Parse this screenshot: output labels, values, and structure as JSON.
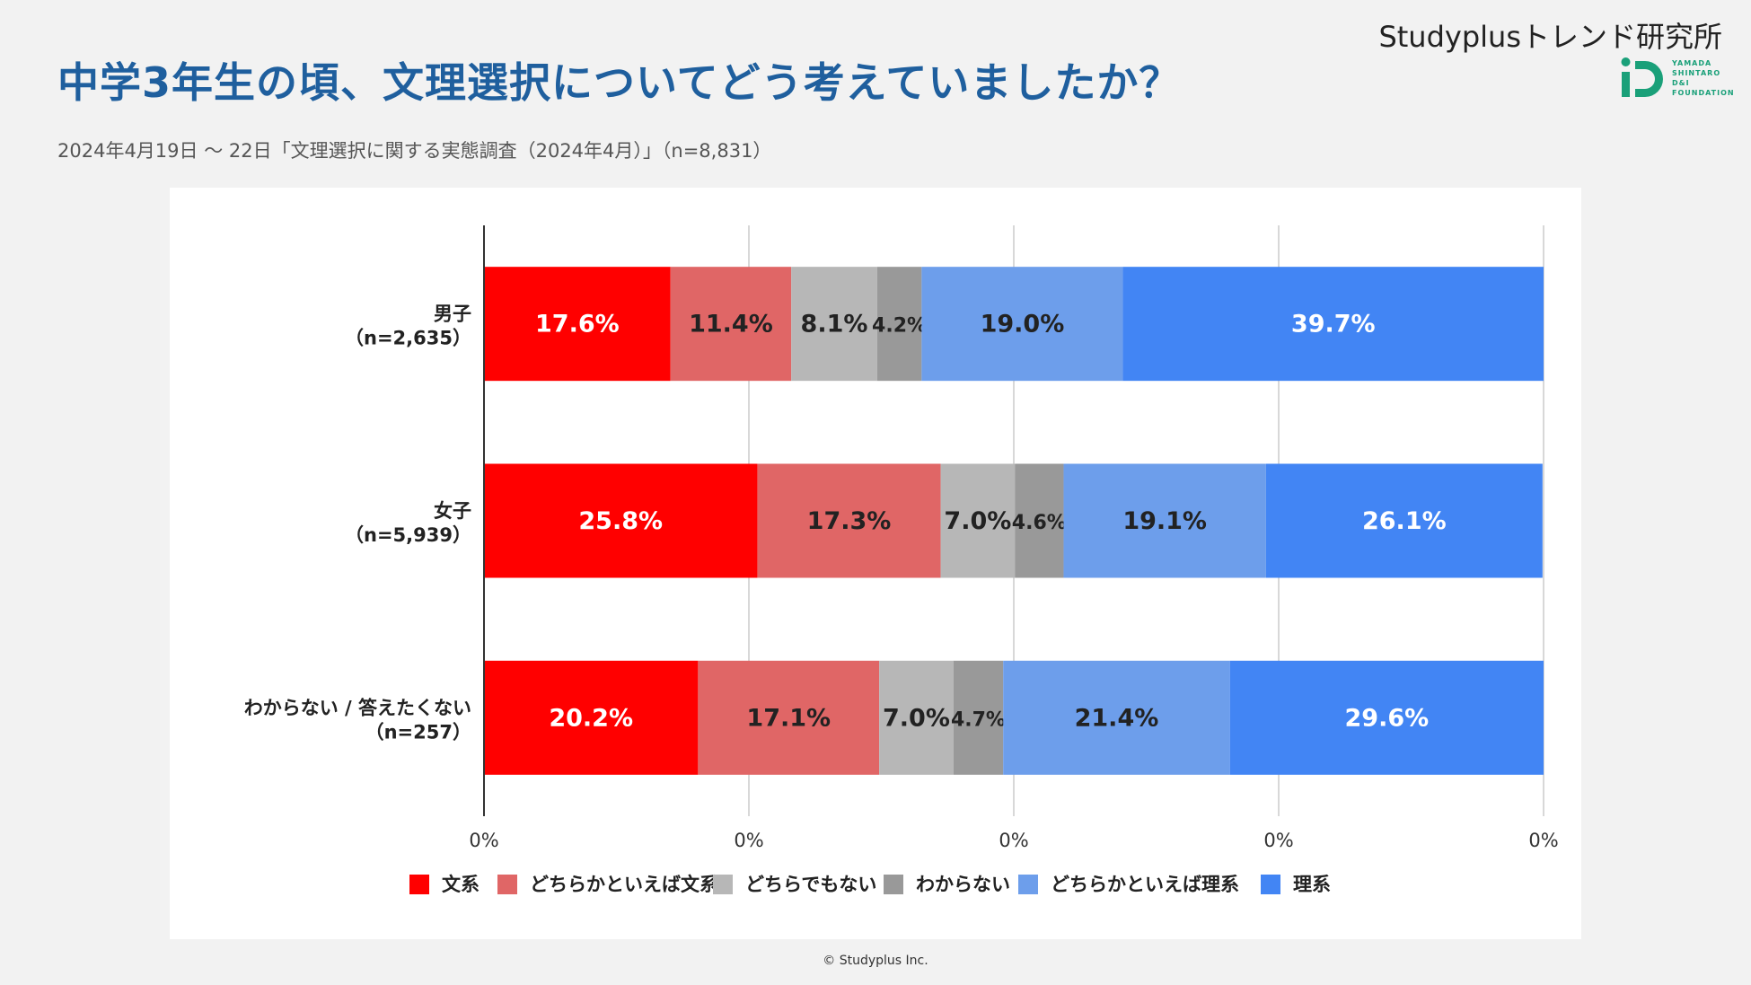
{
  "header": {
    "title": "中学3年生の頃、文理選択についてどう考えていましたか？",
    "subtitle": "2024年4月19日 〜 22日「文理選択に関する実態調査（2024年4月）」（n=8,831）",
    "brand": "Studyplusトレンド研究所",
    "logo_lines": [
      "YAMADA",
      "SHINTARO",
      "D&I",
      "FOUNDATION"
    ],
    "logo_mark": "iD",
    "logo_color": "#1aa079"
  },
  "footer": {
    "copyright": "© Studyplus Inc."
  },
  "chart_data": {
    "type": "bar",
    "orientation": "horizontal",
    "stacked": true,
    "categories": [
      "男子\n（n=2,635）",
      "女子\n（n=5,939）",
      "わからない / 答えたくない\n（n=257）"
    ],
    "series": [
      {
        "name": "文系",
        "color": "#ff0000",
        "label_color": "#ffffff",
        "values": [
          17.6,
          25.8,
          20.2
        ]
      },
      {
        "name": "どちらかといえば文系",
        "color": "#e06666",
        "label_color": "#222222",
        "values": [
          11.4,
          17.3,
          17.1
        ]
      },
      {
        "name": "どちらでもない",
        "color": "#b7b7b7",
        "label_color": "#222222",
        "values": [
          8.1,
          7.0,
          7.0
        ]
      },
      {
        "name": "わからない",
        "color": "#999999",
        "label_color": "#222222",
        "values": [
          4.2,
          4.6,
          4.7
        ]
      },
      {
        "name": "どちらかといえば理系",
        "color": "#6d9eeb",
        "label_color": "#222222",
        "values": [
          19.0,
          19.1,
          21.4
        ]
      },
      {
        "name": "理系",
        "color": "#4285f4",
        "label_color": "#ffffff",
        "values": [
          39.7,
          26.1,
          29.6
        ]
      }
    ],
    "data_labels": [
      [
        "17.6%",
        "25.8%",
        "20.2%"
      ],
      [
        "11.4%",
        "17.3%",
        "17.1%"
      ],
      [
        "8.1%",
        "7.0%",
        "7.0%"
      ],
      [
        "4.2%",
        "4.6%",
        "4.7%"
      ],
      [
        "19.0%",
        "19.1%",
        "21.4%"
      ],
      [
        "39.7%",
        "26.1%",
        "29.6%"
      ]
    ],
    "x_tick_labels": [
      "0%",
      "0%",
      "0%",
      "0%",
      "0%"
    ],
    "xlim": [
      0,
      100
    ],
    "grid": true,
    "legend_position": "bottom"
  }
}
